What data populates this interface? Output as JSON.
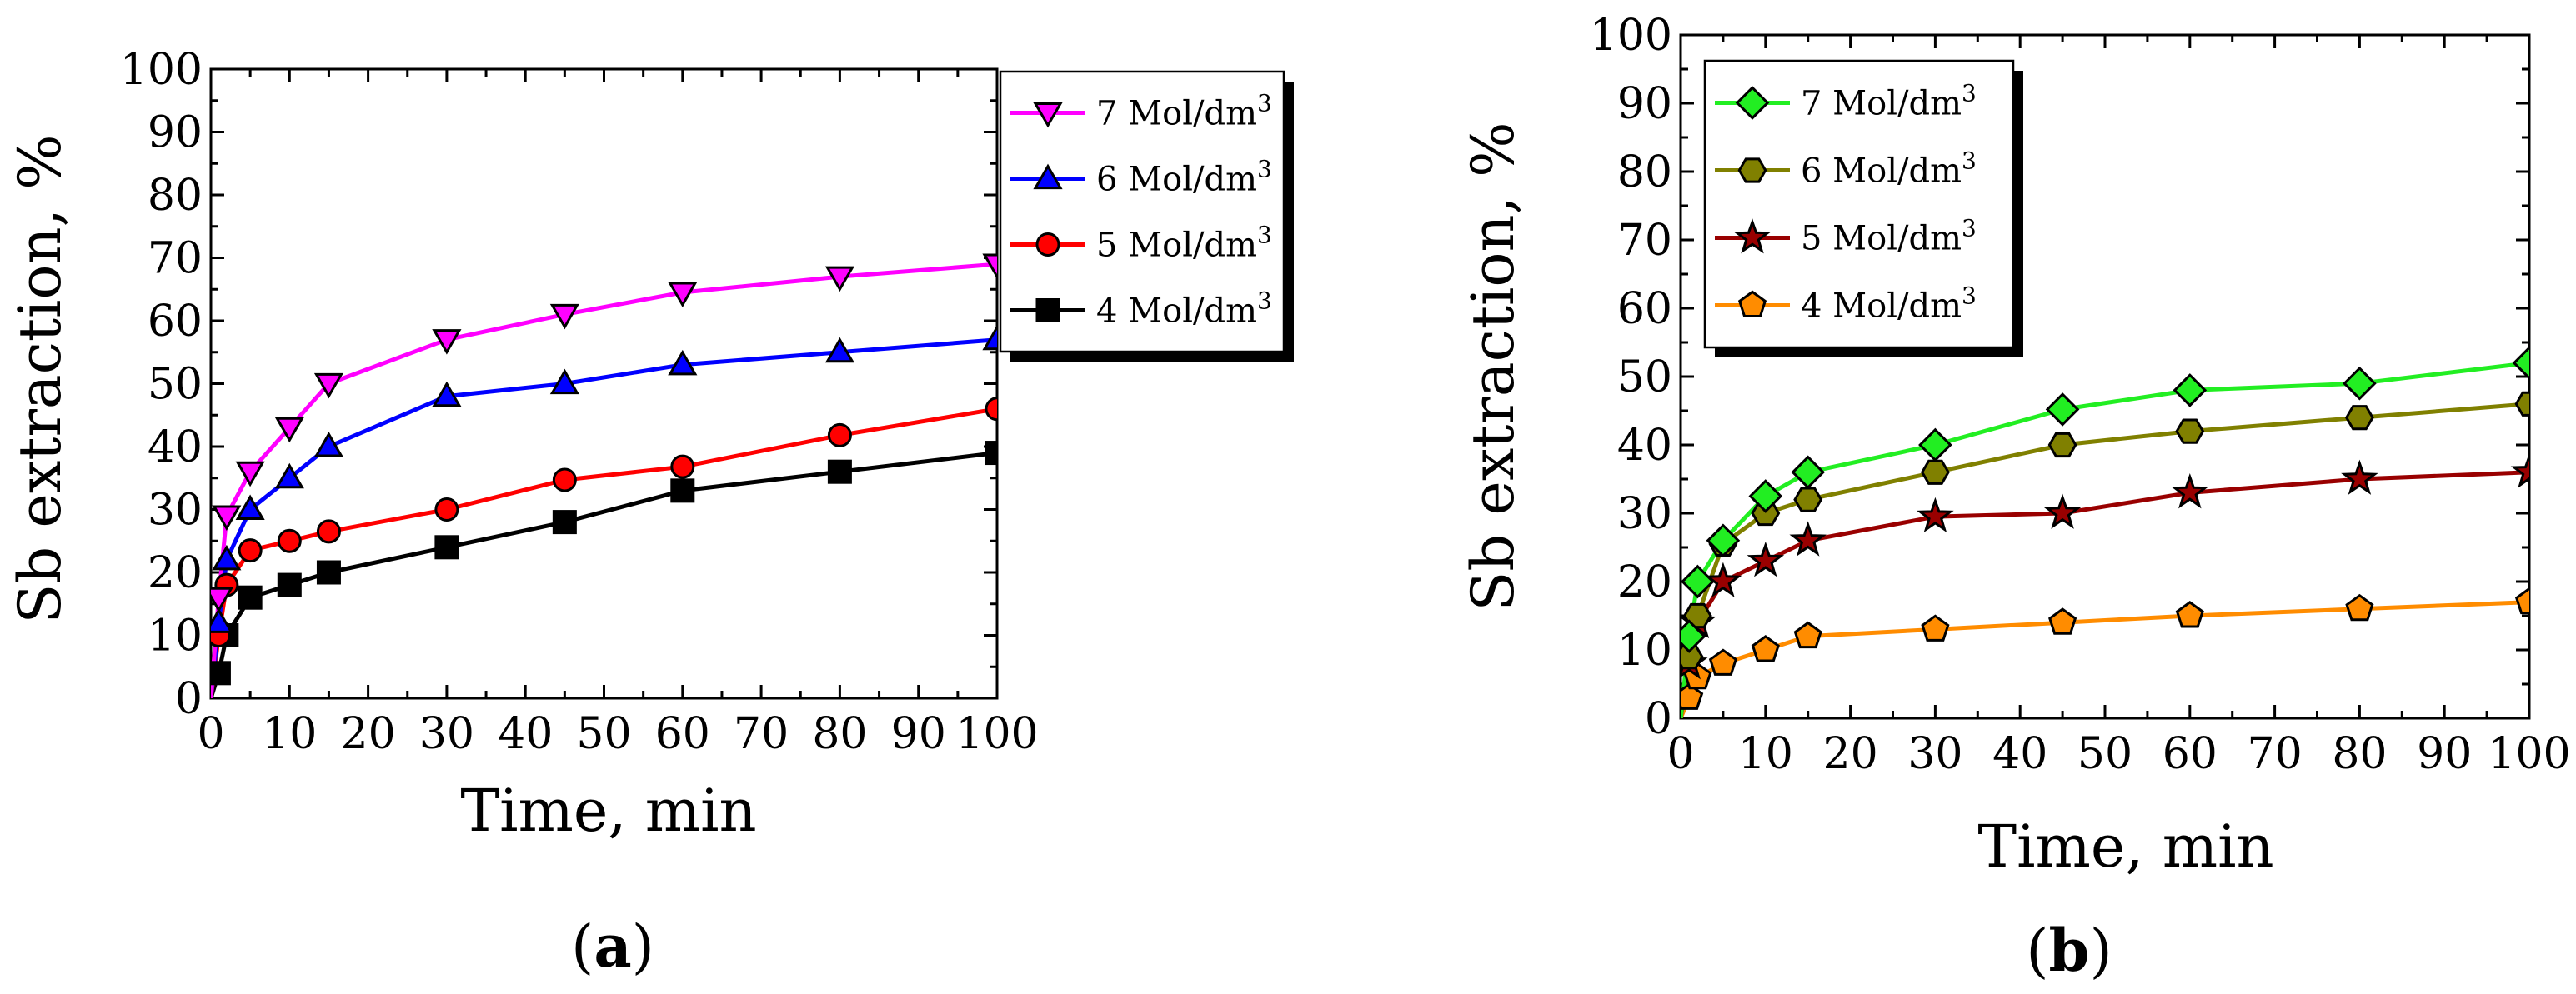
{
  "chart_data": [
    {
      "type": "line",
      "panel_label": "a",
      "xlabel": "Time, min",
      "ylabel": "Sb extraction, %",
      "xlim": [
        0,
        100
      ],
      "ylim": [
        0,
        100
      ],
      "xticks": [
        0,
        10,
        20,
        30,
        40,
        50,
        60,
        70,
        80,
        90,
        100
      ],
      "yticks": [
        0,
        10,
        20,
        30,
        40,
        50,
        60,
        70,
        80,
        90,
        100
      ],
      "legend_position": "outside-right-top",
      "series": [
        {
          "name": "7 Mol/dm",
          "sup": "3",
          "color": "#ff00ff",
          "marker": "triangle-down",
          "x": [
            0,
            1,
            2,
            5,
            10,
            15,
            30,
            45,
            60,
            80,
            100
          ],
          "y": [
            0,
            16,
            29,
            36,
            43,
            50,
            57,
            61,
            64.5,
            67,
            69
          ]
        },
        {
          "name": "6 Mol/dm",
          "sup": "3",
          "color": "#0000ff",
          "marker": "triangle-up",
          "x": [
            0,
            1,
            2,
            5,
            10,
            15,
            30,
            45,
            60,
            80,
            100
          ],
          "y": [
            0,
            12,
            22,
            30,
            35,
            40,
            48,
            50,
            53,
            55,
            57
          ]
        },
        {
          "name": "5 Mol/dm",
          "sup": "3",
          "color": "#ff0000",
          "marker": "circle",
          "x": [
            0,
            1,
            2,
            5,
            10,
            15,
            30,
            45,
            60,
            80,
            100
          ],
          "y": [
            0,
            10,
            18,
            23.5,
            25,
            26.5,
            30,
            34.7,
            36.8,
            41.8,
            46
          ]
        },
        {
          "name": "4 Mol/dm",
          "sup": "3",
          "color": "#000000",
          "marker": "square",
          "x": [
            0,
            1,
            2,
            5,
            10,
            15,
            30,
            45,
            60,
            80,
            100
          ],
          "y": [
            0,
            4,
            10,
            16,
            18,
            20,
            24,
            28,
            33,
            36,
            39
          ]
        }
      ]
    },
    {
      "type": "line",
      "panel_label": "b",
      "xlabel": "Time, min",
      "ylabel": "Sb extraction, %",
      "xlim": [
        0,
        100
      ],
      "ylim": [
        0,
        100
      ],
      "xticks": [
        0,
        10,
        20,
        30,
        40,
        50,
        60,
        70,
        80,
        90,
        100
      ],
      "yticks": [
        0,
        10,
        20,
        30,
        40,
        50,
        60,
        70,
        80,
        90,
        100
      ],
      "legend_position": "top-left",
      "series": [
        {
          "name": "7 Mol/dm",
          "sup": "3",
          "color": "#22ee22",
          "marker": "diamond",
          "x": [
            0,
            1,
            2,
            5,
            10,
            15,
            30,
            45,
            60,
            80,
            100
          ],
          "y": [
            0,
            12,
            20,
            26,
            32.5,
            36,
            40,
            45.2,
            48,
            49,
            52
          ]
        },
        {
          "name": "6 Mol/dm",
          "sup": "3",
          "color": "#808000",
          "marker": "hexagon",
          "x": [
            0,
            1,
            2,
            5,
            10,
            15,
            30,
            45,
            60,
            80,
            100
          ],
          "y": [
            0,
            9,
            15,
            25.5,
            30,
            32,
            36,
            40,
            42,
            44,
            46
          ]
        },
        {
          "name": "5 Mol/dm",
          "sup": "3",
          "color": "#990000",
          "marker": "star",
          "x": [
            0,
            1,
            2,
            5,
            10,
            15,
            30,
            45,
            60,
            80,
            100
          ],
          "y": [
            0,
            8,
            14,
            20,
            23,
            26,
            29.5,
            30,
            33,
            35,
            36
          ]
        },
        {
          "name": "4 Mol/dm",
          "sup": "3",
          "color": "#ff8c00",
          "marker": "pentagon",
          "x": [
            0,
            1,
            2,
            5,
            10,
            15,
            30,
            45,
            60,
            80,
            100
          ],
          "y": [
            0,
            3,
            6,
            8,
            10,
            12,
            13,
            14,
            15,
            16,
            17
          ]
        }
      ]
    }
  ]
}
